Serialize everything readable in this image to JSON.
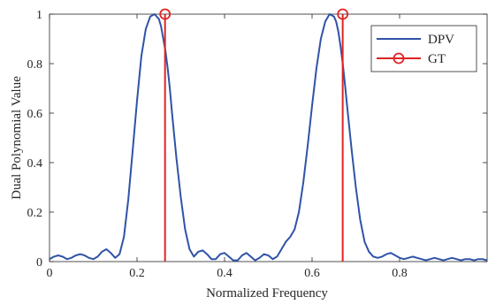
{
  "chart_data": {
    "type": "line",
    "title": "",
    "xlabel": "Normalized Frequency",
    "ylabel": "Dual Polynomial Value",
    "xlim": [
      0,
      1
    ],
    "ylim": [
      0,
      1
    ],
    "xticks": [
      0,
      0.2,
      0.4,
      0.6,
      0.8
    ],
    "xtick_labels": [
      "0",
      "0.2",
      "0.4",
      "0.6",
      "0.8"
    ],
    "yticks": [
      0,
      0.2,
      0.4,
      0.6,
      0.8,
      1
    ],
    "ytick_labels": [
      "0",
      "0.2",
      "0.4",
      "0.6",
      "0.8",
      "1"
    ],
    "grid": false,
    "legend_position": "top-right",
    "series": [
      {
        "name": "DPV",
        "kind": "line",
        "color": "#2f53a8",
        "x": [
          0,
          0.01,
          0.02,
          0.03,
          0.04,
          0.05,
          0.06,
          0.07,
          0.08,
          0.09,
          0.1,
          0.11,
          0.12,
          0.13,
          0.14,
          0.15,
          0.16,
          0.17,
          0.18,
          0.19,
          0.2,
          0.21,
          0.22,
          0.23,
          0.24,
          0.25,
          0.255,
          0.26,
          0.265,
          0.27,
          0.275,
          0.28,
          0.29,
          0.3,
          0.31,
          0.32,
          0.33,
          0.34,
          0.35,
          0.36,
          0.37,
          0.38,
          0.39,
          0.4,
          0.41,
          0.42,
          0.43,
          0.44,
          0.45,
          0.46,
          0.47,
          0.48,
          0.49,
          0.5,
          0.51,
          0.52,
          0.53,
          0.54,
          0.55,
          0.56,
          0.57,
          0.58,
          0.59,
          0.6,
          0.61,
          0.62,
          0.63,
          0.64,
          0.65,
          0.655,
          0.66,
          0.665,
          0.67,
          0.675,
          0.68,
          0.69,
          0.7,
          0.71,
          0.72,
          0.73,
          0.74,
          0.75,
          0.76,
          0.77,
          0.78,
          0.79,
          0.8,
          0.81,
          0.82,
          0.83,
          0.84,
          0.85,
          0.86,
          0.87,
          0.88,
          0.89,
          0.9,
          0.91,
          0.92,
          0.93,
          0.94,
          0.95,
          0.96,
          0.97,
          0.98,
          0.99,
          1.0
        ],
        "y": [
          0.01,
          0.02,
          0.025,
          0.02,
          0.01,
          0.015,
          0.025,
          0.03,
          0.025,
          0.015,
          0.01,
          0.02,
          0.04,
          0.05,
          0.035,
          0.015,
          0.03,
          0.1,
          0.25,
          0.45,
          0.65,
          0.83,
          0.94,
          0.99,
          1.0,
          0.98,
          0.95,
          0.9,
          0.85,
          0.78,
          0.7,
          0.6,
          0.42,
          0.26,
          0.13,
          0.05,
          0.02,
          0.04,
          0.045,
          0.03,
          0.01,
          0.01,
          0.03,
          0.035,
          0.02,
          0.005,
          0.005,
          0.025,
          0.035,
          0.02,
          0.005,
          0.015,
          0.03,
          0.025,
          0.01,
          0.02,
          0.05,
          0.08,
          0.1,
          0.13,
          0.2,
          0.32,
          0.47,
          0.63,
          0.78,
          0.9,
          0.97,
          1.0,
          0.99,
          0.97,
          0.93,
          0.87,
          0.8,
          0.72,
          0.63,
          0.46,
          0.3,
          0.17,
          0.08,
          0.04,
          0.02,
          0.015,
          0.02,
          0.03,
          0.035,
          0.025,
          0.015,
          0.01,
          0.015,
          0.02,
          0.015,
          0.01,
          0.005,
          0.01,
          0.015,
          0.01,
          0.005,
          0.01,
          0.015,
          0.01,
          0.005,
          0.01,
          0.01,
          0.005,
          0.01,
          0.01,
          0.005
        ]
      },
      {
        "name": "GT",
        "kind": "stem",
        "color": "#e02424",
        "x": [
          0.264,
          0.67
        ],
        "y": [
          1,
          1
        ]
      }
    ]
  }
}
